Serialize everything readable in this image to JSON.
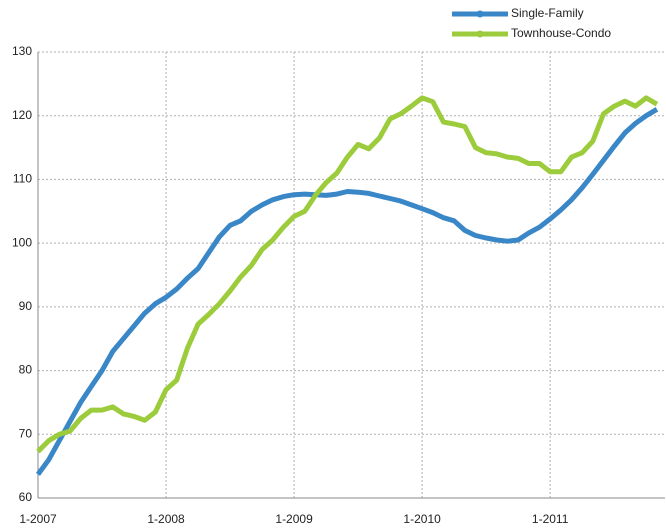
{
  "chart_data": {
    "type": "line",
    "categories": [
      "1-2007",
      null,
      null,
      null,
      null,
      null,
      null,
      null,
      null,
      null,
      null,
      null,
      "1-2008",
      null,
      null,
      null,
      null,
      null,
      null,
      null,
      null,
      null,
      null,
      null,
      "1-2009",
      null,
      null,
      null,
      null,
      null,
      null,
      null,
      null,
      null,
      null,
      null,
      "1-2010",
      null,
      null,
      null,
      null,
      null,
      null,
      null,
      null,
      null,
      null,
      null,
      "1-2011",
      null,
      null,
      null,
      null,
      null,
      null,
      null,
      null,
      null,
      null
    ],
    "series": [
      {
        "name": "Single-Family",
        "color": "#3a87c8",
        "values": [
          63.7,
          66,
          69,
          72,
          75,
          77.5,
          80,
          83,
          85,
          87,
          89,
          90.5,
          91.5,
          92.8,
          94.5,
          96,
          98.5,
          101,
          102.8,
          103.5,
          105,
          106,
          106.8,
          107.3,
          107.6,
          107.7,
          107.6,
          107.5,
          107.7,
          108.1,
          108,
          107.8,
          107.4,
          107,
          106.6,
          106,
          105.4,
          104.8,
          104,
          103.5,
          102,
          101.2,
          100.8,
          100.5,
          100.3,
          100.5,
          101.6,
          102.5,
          103.8,
          105.2,
          106.8,
          108.7,
          110.8,
          113,
          115.2,
          117.3,
          118.8,
          120,
          121
        ]
      },
      {
        "name": "Townhouse-Condo",
        "color": "#9ccc3c",
        "values": [
          67.3,
          69,
          70,
          70.5,
          72.5,
          73.8,
          73.8,
          74.3,
          73.2,
          72.8,
          72.2,
          73.5,
          77,
          78.5,
          83.5,
          87.3,
          88.8,
          90.5,
          92.5,
          94.7,
          96.5,
          99,
          100.5,
          102.5,
          104.2,
          105,
          107.5,
          109.5,
          111,
          113.5,
          115.5,
          114.8,
          116.5,
          119.5,
          120.3,
          121.5,
          122.8,
          122.2,
          119,
          118.7,
          118.3,
          115,
          114.2,
          114,
          113.5,
          113.3,
          112.5,
          112.5,
          111.2,
          111.2,
          113.5,
          114.2,
          116,
          120.3,
          121.5,
          122.3,
          121.5,
          122.8,
          121.8
        ]
      }
    ],
    "ylim": [
      60,
      130
    ],
    "yticks": [
      60,
      70,
      80,
      90,
      100,
      110,
      120,
      130
    ],
    "grid": true
  }
}
